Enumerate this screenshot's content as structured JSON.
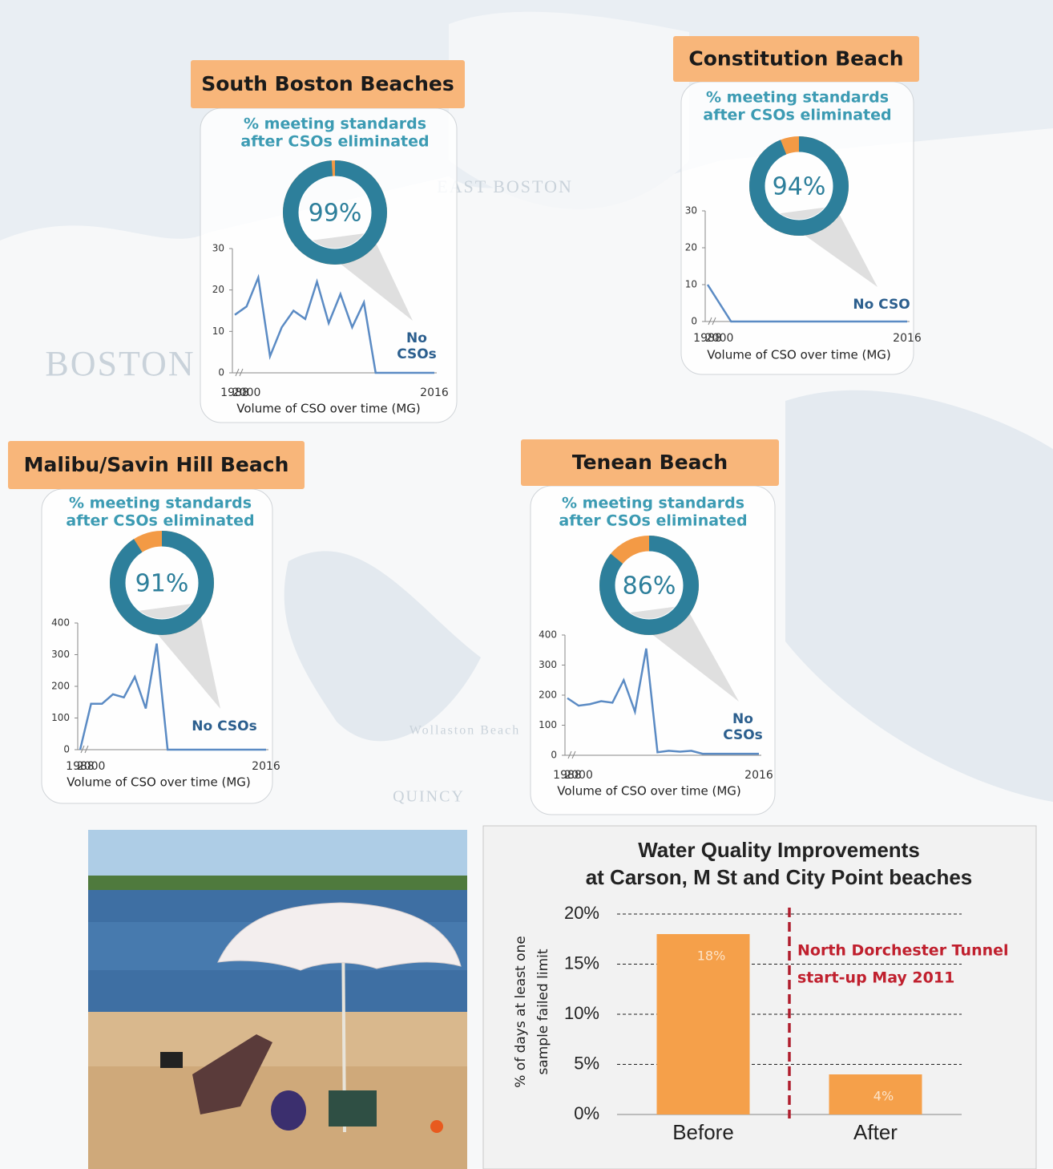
{
  "map_labels": [
    "BOSTON",
    "EAST BOSTON",
    "QUINCY",
    "Wollaston Beach"
  ],
  "panels": [
    {
      "title": "South Boston Beaches",
      "subtitle": [
        "% meeting standards",
        "after CSOs eliminated"
      ],
      "donut": {
        "type": "donut",
        "value": 99,
        "value_label": "99%"
      },
      "line": {
        "type": "line",
        "categories": [
          "1988",
          "2000",
          null,
          null,
          null,
          null,
          null,
          null,
          null,
          null,
          null,
          null,
          null,
          null,
          null,
          null,
          null,
          "2016"
        ],
        "values": [
          14,
          16,
          23,
          4,
          11,
          15,
          13,
          22,
          12,
          19,
          11,
          17,
          0,
          0,
          0,
          0,
          0,
          0
        ],
        "ylim": [
          0,
          30
        ],
        "yticks": [
          0,
          10,
          20,
          30
        ],
        "xlabel": "Volume of CSO over time (MG)",
        "annotation": [
          "No",
          "CSOs"
        ]
      }
    },
    {
      "title": "Constitution Beach",
      "subtitle": [
        "% meeting standards",
        "after CSOs eliminated"
      ],
      "donut": {
        "type": "donut",
        "value": 94,
        "value_label": "94%"
      },
      "line": {
        "type": "line",
        "categories": [
          "1988",
          "2000",
          null,
          null,
          null,
          null,
          null,
          null,
          null,
          null,
          null,
          null,
          null,
          null,
          null,
          null,
          null,
          "2016"
        ],
        "values": [
          10,
          5,
          0,
          0,
          0,
          0,
          0,
          0,
          0,
          0,
          0,
          0,
          0,
          0,
          0,
          0,
          0,
          0
        ],
        "ylim": [
          0,
          30
        ],
        "yticks": [
          0,
          10,
          20,
          30
        ],
        "xlabel": "Volume of CSO over time (MG)",
        "annotation": [
          "No CSO"
        ]
      }
    },
    {
      "title": "Malibu/Savin Hill Beach",
      "subtitle": [
        "% meeting standards",
        "after CSOs eliminated"
      ],
      "donut": {
        "type": "donut",
        "value": 91,
        "value_label": "91%"
      },
      "line": {
        "type": "line",
        "categories": [
          "1988",
          "2000",
          null,
          null,
          null,
          null,
          null,
          null,
          null,
          null,
          null,
          null,
          null,
          null,
          null,
          null,
          null,
          "2016"
        ],
        "values": [
          0,
          145,
          145,
          175,
          165,
          230,
          130,
          335,
          0,
          0,
          0,
          0,
          0,
          0,
          0,
          0,
          0,
          0
        ],
        "ylim": [
          0,
          400
        ],
        "yticks": [
          0,
          100,
          200,
          300,
          400
        ],
        "xlabel": "Volume of CSO over time (MG)",
        "annotation": [
          "No CSOs"
        ]
      }
    },
    {
      "title": "Tenean Beach",
      "subtitle": [
        "% meeting standards",
        "after CSOs eliminated"
      ],
      "donut": {
        "type": "donut",
        "value": 86,
        "value_label": "86%"
      },
      "line": {
        "type": "line",
        "categories": [
          "1988",
          "2000",
          null,
          null,
          null,
          null,
          null,
          null,
          null,
          null,
          null,
          null,
          null,
          null,
          null,
          null,
          null,
          "2016"
        ],
        "values": [
          190,
          165,
          170,
          180,
          175,
          250,
          145,
          355,
          10,
          15,
          12,
          15,
          5,
          5,
          5,
          5,
          5,
          5
        ],
        "ylim": [
          0,
          400
        ],
        "yticks": [
          0,
          100,
          200,
          300,
          400
        ],
        "xlabel": "Volume of CSO over time (MG)",
        "annotation": [
          "No",
          "CSOs"
        ]
      }
    }
  ],
  "chart_data": {
    "type": "bar",
    "title": [
      "Water Quality Improvements",
      "at Carson, M St and City Point beaches"
    ],
    "categories": [
      "Before",
      "After"
    ],
    "values": [
      18,
      4
    ],
    "value_labels": [
      "18%",
      "4%"
    ],
    "color": "#f5a04a",
    "ylabel": [
      "% of days at least one",
      "sample failed limit"
    ],
    "ylim": [
      0,
      20
    ],
    "yticks": [
      {
        "value": 0,
        "label": "0%"
      },
      {
        "value": 5,
        "label": "5%"
      },
      {
        "value": 10,
        "label": "10%"
      },
      {
        "value": 15,
        "label": "15%"
      },
      {
        "value": 20,
        "label": "20%"
      }
    ],
    "grid": true,
    "annotation": [
      "North Dorchester  Tunnel",
      "start-up  May 2011"
    ]
  }
}
